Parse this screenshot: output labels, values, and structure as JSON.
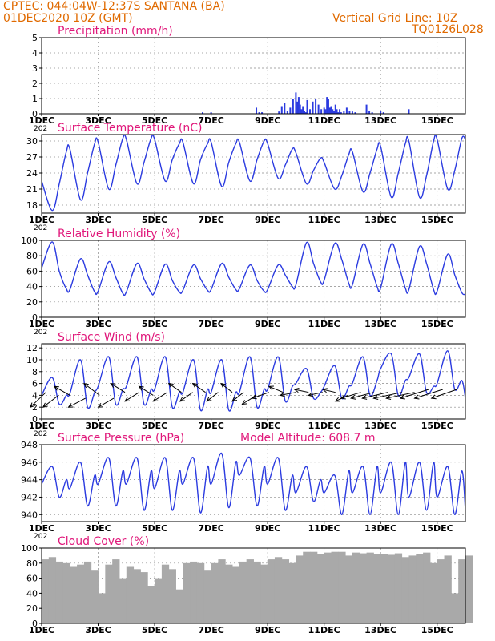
{
  "header": {
    "line1": "CPTEC:   044:04W-12:37S   SANTANA (BA)",
    "date": "01DEC2020 10Z (GMT)",
    "grid_note": "Vertical Grid Line: 10Z",
    "code": "TQ0126L028"
  },
  "colors": {
    "header": "#e06a00",
    "title": "#e0177a",
    "series": "#2b3be0",
    "bar": "#2b3be0",
    "cloud": "#a9a9a9",
    "grid": "#8a8a8a"
  },
  "x_axis": {
    "min": 0,
    "max": 15,
    "ticks": [
      {
        "x": 0,
        "label": "1DEC"
      },
      {
        "x": 2,
        "label": "3DEC"
      },
      {
        "x": 4,
        "label": "5DEC"
      },
      {
        "x": 6,
        "label": "7DEC"
      },
      {
        "x": 8,
        "label": "9DEC"
      },
      {
        "x": 10,
        "label": "11DEC"
      },
      {
        "x": 12,
        "label": "13DEC"
      },
      {
        "x": 14,
        "label": "15DEC"
      }
    ],
    "year_fragment": "202"
  },
  "chart_data": [
    {
      "type": "bar",
      "title": "Precipitation (mm/h)",
      "ylim": [
        0,
        5
      ],
      "yticks": [
        0,
        1,
        2,
        3,
        4,
        5
      ],
      "x_units": "days since 01DEC2020 10Z",
      "x": [
        5.7,
        6.0,
        7.6,
        7.7,
        7.8,
        8.4,
        8.5,
        8.6,
        8.7,
        8.8,
        8.9,
        9.0,
        9.05,
        9.1,
        9.15,
        9.2,
        9.25,
        9.3,
        9.35,
        9.4,
        9.5,
        9.6,
        9.7,
        9.8,
        9.9,
        10.0,
        10.05,
        10.1,
        10.15,
        10.2,
        10.25,
        10.3,
        10.35,
        10.4,
        10.45,
        10.5,
        10.55,
        10.6,
        10.7,
        10.8,
        10.9,
        11.0,
        11.1,
        11.5,
        11.6,
        11.7,
        12.0,
        12.1,
        13.0
      ],
      "values": [
        0.1,
        0.1,
        0.4,
        0.1,
        0.1,
        0.15,
        0.5,
        0.7,
        0.2,
        0.4,
        1.0,
        1.4,
        0.8,
        1.1,
        0.6,
        0.3,
        0.5,
        0.2,
        0.1,
        0.9,
        0.3,
        0.8,
        1.0,
        0.6,
        0.3,
        0.4,
        0.3,
        1.1,
        1.0,
        0.4,
        0.5,
        0.3,
        0.2,
        0.6,
        0.3,
        0.1,
        0.3,
        0.1,
        0.2,
        0.4,
        0.2,
        0.15,
        0.1,
        0.6,
        0.2,
        0.1,
        0.2,
        0.1,
        0.3
      ]
    },
    {
      "type": "line",
      "title": "Surface Temperature (nC)",
      "ylim": [
        16.5,
        31.2
      ],
      "yticks": [
        18,
        21,
        24,
        27,
        30
      ],
      "x": [
        0,
        0.375,
        0.625,
        0.875,
        1.0,
        1.375,
        1.625,
        1.875,
        2.0,
        2.375,
        2.625,
        2.875,
        3.0,
        3.375,
        3.625,
        3.875,
        4.0,
        4.375,
        4.625,
        4.875,
        5.0,
        5.375,
        5.625,
        5.875,
        6.0,
        6.375,
        6.625,
        6.875,
        7.0,
        7.375,
        7.625,
        7.875,
        8.0,
        8.375,
        8.625,
        8.875,
        9.0,
        9.375,
        9.625,
        9.875,
        10.0,
        10.375,
        10.625,
        10.875,
        11.0,
        11.375,
        11.625,
        11.875,
        12.0,
        12.375,
        12.625,
        12.875,
        13.0,
        13.375,
        13.625,
        13.875,
        14.0,
        14.375,
        14.625,
        14.875,
        15.0
      ],
      "values": [
        22.5,
        17.0,
        22.0,
        28.0,
        28.5,
        19.0,
        24.0,
        29.5,
        29.8,
        21.0,
        25.5,
        30.5,
        30.3,
        22.0,
        26.0,
        30.5,
        30.3,
        22.5,
        26.5,
        29.5,
        29.8,
        22.0,
        26.5,
        29.5,
        29.8,
        21.5,
        26.0,
        29.5,
        29.8,
        22.5,
        26.5,
        30.0,
        29.5,
        23.0,
        25.5,
        28.5,
        27.8,
        22.0,
        24.5,
        26.8,
        26.0,
        21.0,
        23.5,
        27.5,
        28.0,
        20.5,
        24.0,
        28.5,
        29.0,
        19.5,
        24.0,
        29.5,
        30.0,
        19.5,
        23.5,
        30.0,
        30.3,
        21.0,
        24.5,
        30.5,
        30.3
      ]
    },
    {
      "type": "line",
      "title": "Relative Humidity (%)",
      "ylim": [
        0,
        100
      ],
      "yticks": [
        0,
        20,
        40,
        60,
        80,
        100
      ],
      "x": [
        0,
        0.375,
        0.625,
        0.875,
        1.0,
        1.375,
        1.625,
        1.875,
        2.0,
        2.375,
        2.625,
        2.875,
        3.0,
        3.375,
        3.625,
        3.875,
        4.0,
        4.375,
        4.625,
        4.875,
        5.0,
        5.375,
        5.625,
        5.875,
        6.0,
        6.375,
        6.625,
        6.875,
        7.0,
        7.375,
        7.625,
        7.875,
        8.0,
        8.375,
        8.625,
        8.875,
        9.0,
        9.375,
        9.625,
        9.875,
        10.0,
        10.375,
        10.625,
        10.875,
        11.0,
        11.375,
        11.625,
        11.875,
        12.0,
        12.375,
        12.625,
        12.875,
        13.0,
        13.375,
        13.625,
        13.875,
        14.0,
        14.375,
        14.625,
        14.875,
        15.0
      ],
      "values": [
        64,
        98,
        60,
        37,
        36,
        76,
        55,
        33,
        34,
        72,
        52,
        31,
        33,
        70,
        50,
        32,
        33,
        69,
        48,
        33,
        35,
        68,
        50,
        35,
        36,
        70,
        52,
        36,
        37,
        68,
        48,
        34,
        36,
        68,
        55,
        40,
        42,
        97,
        70,
        46,
        48,
        96,
        75,
        44,
        42,
        95,
        70,
        40,
        38,
        95,
        70,
        38,
        36,
        92,
        70,
        36,
        34,
        82,
        55,
        32,
        30
      ]
    },
    {
      "type": "line",
      "title": "Surface Wind (m/s)",
      "ylim": [
        0,
        12.7
      ],
      "yticks": [
        0,
        2,
        4,
        6,
        8,
        10,
        12
      ],
      "x": [
        0,
        0.375,
        0.625,
        0.875,
        1.0,
        1.375,
        1.625,
        1.875,
        2.0,
        2.375,
        2.625,
        2.875,
        3.0,
        3.375,
        3.625,
        3.875,
        4.0,
        4.375,
        4.625,
        4.875,
        5.0,
        5.375,
        5.625,
        5.875,
        6.0,
        6.375,
        6.625,
        6.875,
        7.0,
        7.375,
        7.625,
        7.875,
        8.0,
        8.375,
        8.625,
        8.875,
        9.0,
        9.375,
        9.625,
        9.875,
        10.0,
        10.375,
        10.625,
        10.875,
        11.0,
        11.375,
        11.625,
        11.875,
        12.0,
        12.375,
        12.625,
        12.875,
        13.0,
        13.375,
        13.625,
        13.875,
        14.0,
        14.375,
        14.625,
        14.875,
        15.0
      ],
      "values": [
        4.0,
        7.0,
        2.5,
        4.0,
        4.3,
        10.0,
        2.0,
        4.5,
        5.5,
        10.5,
        2.5,
        5.0,
        5.5,
        10.5,
        2.5,
        5.0,
        5.0,
        10.5,
        2.0,
        4.5,
        4.5,
        10.0,
        1.5,
        5.0,
        4.5,
        10.0,
        1.5,
        4.5,
        4.5,
        10.5,
        2.0,
        5.0,
        5.0,
        10.5,
        3.0,
        5.5,
        6.0,
        8.5,
        3.5,
        4.5,
        5.5,
        9.0,
        3.5,
        5.5,
        6.0,
        10.5,
        4.0,
        6.5,
        8.5,
        11.0,
        4.0,
        6.5,
        7.0,
        11.0,
        4.5,
        5.5,
        6.0,
        11.5,
        5.0,
        6.5,
        3.5
      ],
      "arrows": {
        "note": "barbs drawn every ~0.45 day, direction toward lower-left/left",
        "x": [
          0.15,
          0.6,
          1.0,
          1.55,
          2.05,
          2.55,
          2.95,
          3.45,
          3.95,
          4.45,
          4.95,
          5.35,
          5.8,
          6.25,
          6.75,
          7.15,
          7.6,
          8.05,
          8.55,
          9.0,
          9.45,
          9.95,
          10.4,
          10.85,
          11.3,
          11.75,
          12.25,
          12.75,
          13.2,
          13.7,
          14.2,
          14.7
        ],
        "y": [
          4.5,
          4.0,
          4.0,
          3.5,
          4.0,
          3.5,
          4.5,
          4.5,
          4.0,
          4.5,
          4.5,
          4.5,
          4.5,
          4.5,
          4.5,
          4.5,
          4.0,
          4.5,
          4.5,
          4.5,
          4.5,
          4.5,
          4.5,
          4.0,
          4.5,
          4.5,
          4.5,
          4.5,
          4.5,
          5.0,
          5.0,
          5.0
        ],
        "dx": [
          -0.55,
          -0.55,
          -0.55,
          -0.6,
          -0.55,
          -0.55,
          -0.5,
          -0.5,
          -0.5,
          -0.5,
          -0.45,
          -0.45,
          -0.45,
          -0.4,
          -0.4,
          -0.4,
          -0.5,
          -0.6,
          -0.5,
          -0.55,
          -0.5,
          -0.5,
          -0.45,
          -0.45,
          -0.7,
          -0.8,
          -0.9,
          -1.0,
          -1.0,
          -1.0,
          -1.0,
          -0.9
        ],
        "dy": [
          -2.5,
          -2.0,
          1.5,
          -1.5,
          2.0,
          -1.5,
          1.5,
          -1.5,
          1.5,
          -1.5,
          1.5,
          -1.5,
          1.5,
          -1.5,
          1.5,
          -1.5,
          -1.5,
          -1.0,
          1.0,
          -0.5,
          0.5,
          -0.5,
          0.5,
          -1.0,
          -1.0,
          -1.0,
          -1.0,
          -1.0,
          -1.0,
          -1.5,
          -1.5,
          -1.5
        ]
      }
    },
    {
      "type": "line",
      "title": "Surface Pressure (hPa)",
      "extra_label": "Model Altitude: 608.7 m",
      "ylim": [
        939.2,
        948
      ],
      "yticks": [
        940,
        942,
        944,
        946,
        948
      ],
      "x": [
        0,
        0.375,
        0.625,
        0.875,
        1.0,
        1.375,
        1.625,
        1.875,
        2.0,
        2.375,
        2.625,
        2.875,
        3.0,
        3.375,
        3.625,
        3.875,
        4.0,
        4.375,
        4.625,
        4.875,
        5.0,
        5.375,
        5.625,
        5.875,
        6.0,
        6.375,
        6.625,
        6.875,
        7.0,
        7.375,
        7.625,
        7.875,
        8.0,
        8.375,
        8.625,
        8.875,
        9.0,
        9.375,
        9.625,
        9.875,
        10.0,
        10.375,
        10.625,
        10.875,
        11.0,
        11.375,
        11.625,
        11.875,
        12.0,
        12.375,
        12.625,
        12.875,
        13.0,
        13.375,
        13.625,
        13.875,
        14.0,
        14.375,
        14.625,
        14.875,
        15.0
      ],
      "values": [
        943.5,
        945.5,
        942.0,
        944.0,
        943.0,
        946.0,
        941.0,
        944.5,
        943.5,
        946.5,
        941.0,
        945.0,
        943.5,
        946.5,
        940.5,
        945.0,
        943.0,
        946.5,
        940.5,
        945.0,
        943.5,
        946.5,
        940.2,
        945.5,
        943.5,
        947.0,
        940.8,
        946.0,
        944.5,
        946.5,
        941.0,
        945.5,
        943.5,
        946.5,
        940.5,
        944.5,
        942.5,
        945.5,
        941.5,
        944.0,
        942.5,
        944.5,
        940.0,
        945.0,
        942.5,
        945.5,
        940.0,
        945.5,
        942.5,
        946.0,
        940.0,
        946.0,
        942.0,
        946.0,
        940.5,
        946.0,
        942.0,
        945.5,
        940.0,
        945.0,
        940.5
      ]
    },
    {
      "type": "bar",
      "title": "Cloud Cover (%)",
      "ylim": [
        0,
        100
      ],
      "yticks": [
        0,
        20,
        40,
        60,
        80,
        100
      ],
      "x_units": "days since 01DEC2020 10Z",
      "x": [
        0,
        0.25,
        0.5,
        0.75,
        1.0,
        1.25,
        1.5,
        1.75,
        2.0,
        2.25,
        2.5,
        2.75,
        3.0,
        3.25,
        3.5,
        3.75,
        4.0,
        4.25,
        4.5,
        4.75,
        5.0,
        5.25,
        5.5,
        5.75,
        6.0,
        6.25,
        6.5,
        6.75,
        7.0,
        7.25,
        7.5,
        7.75,
        8.0,
        8.25,
        8.5,
        8.75,
        9.0,
        9.25,
        9.5,
        9.75,
        10.0,
        10.25,
        10.5,
        10.75,
        11.0,
        11.25,
        11.5,
        11.75,
        12.0,
        12.25,
        12.5,
        12.75,
        13.0,
        13.25,
        13.5,
        13.75,
        14.0,
        14.25,
        14.5,
        14.75,
        15.0
      ],
      "values": [
        85,
        88,
        82,
        80,
        75,
        78,
        82,
        70,
        40,
        78,
        85,
        60,
        75,
        72,
        68,
        50,
        60,
        78,
        72,
        45,
        80,
        82,
        80,
        70,
        80,
        85,
        78,
        75,
        82,
        85,
        82,
        78,
        85,
        88,
        85,
        80,
        90,
        95,
        95,
        92,
        94,
        95,
        95,
        90,
        94,
        93,
        94,
        92,
        92,
        91,
        93,
        88,
        90,
        92,
        94,
        80,
        85,
        90,
        40,
        85,
        90
      ]
    }
  ]
}
